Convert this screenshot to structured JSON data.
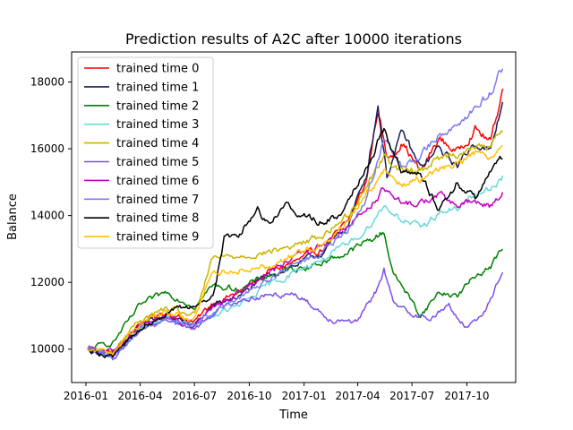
{
  "chart_data": {
    "type": "line",
    "title": "Prediction results of A2C after 10000 iterations",
    "xlabel": "Time",
    "ylabel": "Balance",
    "x_ticks": [
      "2016-01",
      "2016-04",
      "2016-07",
      "2016-10",
      "2017-01",
      "2017-04",
      "2017-07",
      "2017-10"
    ],
    "y_ticks": [
      10000,
      12000,
      14000,
      16000,
      18000
    ],
    "xlim": [
      "2015-12-08",
      "2017-12-22"
    ],
    "ylim": [
      9000,
      18900
    ],
    "grid": false,
    "legend_position": "top-left",
    "series": [
      {
        "name": "trained time 0",
        "color": "#ff0000",
        "x": [
          "2016-01-04",
          "2016-02-15",
          "2016-04-01",
          "2016-05-15",
          "2016-07-01",
          "2016-08-01",
          "2016-09-15",
          "2016-11-01",
          "2016-12-15",
          "2017-02-01",
          "2017-03-15",
          "2017-04-15",
          "2017-05-05",
          "2017-05-20",
          "2017-06-15",
          "2017-07-15",
          "2017-08-15",
          "2017-09-15",
          "2017-10-15",
          "2017-11-10",
          "2017-11-30"
        ],
        "values": [
          10000,
          9900,
          10800,
          11100,
          10800,
          11400,
          11700,
          12300,
          12600,
          13000,
          13800,
          15000,
          17200,
          15700,
          16200,
          15300,
          16300,
          15900,
          16600,
          16200,
          17800
        ]
      },
      {
        "name": "trained time 1",
        "color": "#1c1c5a",
        "x": [
          "2016-01-04",
          "2016-02-15",
          "2016-04-01",
          "2016-05-15",
          "2016-07-01",
          "2016-08-01",
          "2016-09-15",
          "2016-11-01",
          "2016-12-15",
          "2017-02-01",
          "2017-03-15",
          "2017-04-15",
          "2017-05-05",
          "2017-05-20",
          "2017-06-15",
          "2017-07-15",
          "2017-08-15",
          "2017-09-15",
          "2017-10-15",
          "2017-11-10",
          "2017-11-30"
        ],
        "values": [
          10000,
          9800,
          10700,
          11000,
          10700,
          11300,
          11600,
          12200,
          12500,
          12900,
          13700,
          15200,
          17300,
          15200,
          16500,
          15400,
          16000,
          15500,
          16200,
          15900,
          17400
        ]
      },
      {
        "name": "trained time 2",
        "color": "#008000",
        "x": [
          "2016-01-04",
          "2016-02-15",
          "2016-04-01",
          "2016-05-15",
          "2016-07-01",
          "2016-08-01",
          "2016-09-15",
          "2016-11-01",
          "2016-12-15",
          "2017-02-01",
          "2017-03-15",
          "2017-04-15",
          "2017-05-15",
          "2017-06-01",
          "2017-06-15",
          "2017-07-15",
          "2017-08-15",
          "2017-09-15",
          "2017-10-15",
          "2017-11-10",
          "2017-11-30"
        ],
        "values": [
          10000,
          10200,
          11300,
          11700,
          11300,
          11900,
          11800,
          12200,
          12400,
          12600,
          12900,
          13200,
          13500,
          12200,
          11900,
          11000,
          11700,
          11600,
          12200,
          12500,
          13000
        ]
      },
      {
        "name": "trained time 3",
        "color": "#66d9d9",
        "x": [
          "2016-01-04",
          "2016-02-15",
          "2016-04-01",
          "2016-05-15",
          "2016-07-01",
          "2016-08-01",
          "2016-09-15",
          "2016-11-01",
          "2016-12-15",
          "2017-02-01",
          "2017-03-15",
          "2017-04-15",
          "2017-05-15",
          "2017-06-15",
          "2017-07-15",
          "2017-08-15",
          "2017-09-15",
          "2017-10-15",
          "2017-11-10",
          "2017-11-30"
        ],
        "values": [
          10000,
          9800,
          10600,
          10900,
          10700,
          11000,
          11300,
          11900,
          12300,
          12700,
          13100,
          13600,
          14300,
          13900,
          13600,
          14100,
          14200,
          14600,
          14800,
          15200
        ]
      },
      {
        "name": "trained time 4",
        "color": "#c8b400",
        "x": [
          "2016-01-04",
          "2016-02-15",
          "2016-04-01",
          "2016-05-15",
          "2016-07-01",
          "2016-08-01",
          "2016-09-15",
          "2016-11-01",
          "2016-12-15",
          "2017-02-01",
          "2017-03-15",
          "2017-04-15",
          "2017-05-15",
          "2017-06-15",
          "2017-07-15",
          "2017-08-15",
          "2017-09-15",
          "2017-10-15",
          "2017-11-10",
          "2017-11-30"
        ],
        "values": [
          10000,
          9900,
          10900,
          11200,
          11000,
          12700,
          12800,
          12900,
          13100,
          13400,
          14000,
          14900,
          15800,
          15300,
          15400,
          15700,
          15900,
          16000,
          16100,
          16500
        ]
      },
      {
        "name": "trained time 5",
        "color": "#7b4ff0",
        "x": [
          "2016-01-04",
          "2016-02-15",
          "2016-04-01",
          "2016-05-15",
          "2016-07-01",
          "2016-08-01",
          "2016-09-15",
          "2016-11-01",
          "2016-12-15",
          "2017-01-15",
          "2017-02-15",
          "2017-03-15",
          "2017-04-01",
          "2017-05-01",
          "2017-05-15",
          "2017-06-01",
          "2017-07-01",
          "2017-08-01",
          "2017-09-01",
          "2017-10-01",
          "2017-11-01",
          "2017-11-30"
        ],
        "values": [
          10000,
          9700,
          10600,
          10900,
          10600,
          11100,
          11500,
          11600,
          11700,
          11300,
          10900,
          10900,
          10800,
          11700,
          12400,
          11300,
          11100,
          10900,
          11300,
          10600,
          11200,
          12300
        ]
      },
      {
        "name": "trained time 6",
        "color": "#c000c0",
        "x": [
          "2016-01-04",
          "2016-02-15",
          "2016-04-01",
          "2016-05-15",
          "2016-07-01",
          "2016-08-01",
          "2016-09-15",
          "2016-11-01",
          "2016-12-15",
          "2017-02-01",
          "2017-03-15",
          "2017-04-15",
          "2017-05-15",
          "2017-06-15",
          "2017-07-15",
          "2017-08-15",
          "2017-09-15",
          "2017-10-15",
          "2017-11-10",
          "2017-11-30"
        ],
        "values": [
          10000,
          9900,
          10700,
          11000,
          10600,
          11300,
          11700,
          12300,
          12700,
          13100,
          13700,
          14200,
          14800,
          14300,
          14400,
          14600,
          14300,
          14400,
          14300,
          14700
        ]
      },
      {
        "name": "trained time 7",
        "color": "#7b7bef",
        "x": [
          "2016-01-04",
          "2016-02-15",
          "2016-04-01",
          "2016-05-15",
          "2016-07-01",
          "2016-08-01",
          "2016-09-15",
          "2016-11-01",
          "2016-12-15",
          "2017-02-01",
          "2017-03-15",
          "2017-04-15",
          "2017-05-15",
          "2017-06-15",
          "2017-07-15",
          "2017-08-15",
          "2017-09-15",
          "2017-10-15",
          "2017-11-10",
          "2017-11-30"
        ],
        "values": [
          10000,
          9800,
          10600,
          10900,
          10700,
          11100,
          11500,
          12100,
          12500,
          12900,
          13500,
          14500,
          16300,
          15400,
          15800,
          16400,
          16800,
          17200,
          17700,
          18400
        ]
      },
      {
        "name": "trained time 8",
        "color": "#000000",
        "x": [
          "2016-01-04",
          "2016-02-15",
          "2016-04-01",
          "2016-05-15",
          "2016-07-01",
          "2016-08-01",
          "2016-08-20",
          "2016-09-15",
          "2016-10-15",
          "2016-11-01",
          "2016-12-01",
          "2017-01-01",
          "2017-02-01",
          "2017-03-01",
          "2017-03-20",
          "2017-04-15",
          "2017-05-15",
          "2017-06-15",
          "2017-07-15",
          "2017-08-15",
          "2017-09-15",
          "2017-10-15",
          "2017-11-10",
          "2017-11-30"
        ],
        "values": [
          10000,
          9800,
          10600,
          11100,
          11300,
          11600,
          13300,
          13500,
          14200,
          13800,
          14300,
          14000,
          13800,
          14000,
          14600,
          15500,
          16600,
          15300,
          15200,
          14200,
          15000,
          14500,
          15400,
          15700
        ]
      },
      {
        "name": "trained time 9",
        "color": "#ffc000",
        "x": [
          "2016-01-04",
          "2016-02-15",
          "2016-04-01",
          "2016-05-15",
          "2016-07-01",
          "2016-08-01",
          "2016-09-15",
          "2016-11-01",
          "2016-12-15",
          "2017-02-01",
          "2017-03-15",
          "2017-04-15",
          "2017-05-15",
          "2017-06-15",
          "2017-07-15",
          "2017-08-15",
          "2017-09-15",
          "2017-10-15",
          "2017-11-10",
          "2017-11-30"
        ],
        "values": [
          10000,
          9900,
          10800,
          11100,
          10900,
          12300,
          12400,
          12500,
          12800,
          13200,
          13800,
          14700,
          15300,
          14900,
          15100,
          15400,
          15600,
          15900,
          15800,
          16100
        ]
      }
    ]
  }
}
